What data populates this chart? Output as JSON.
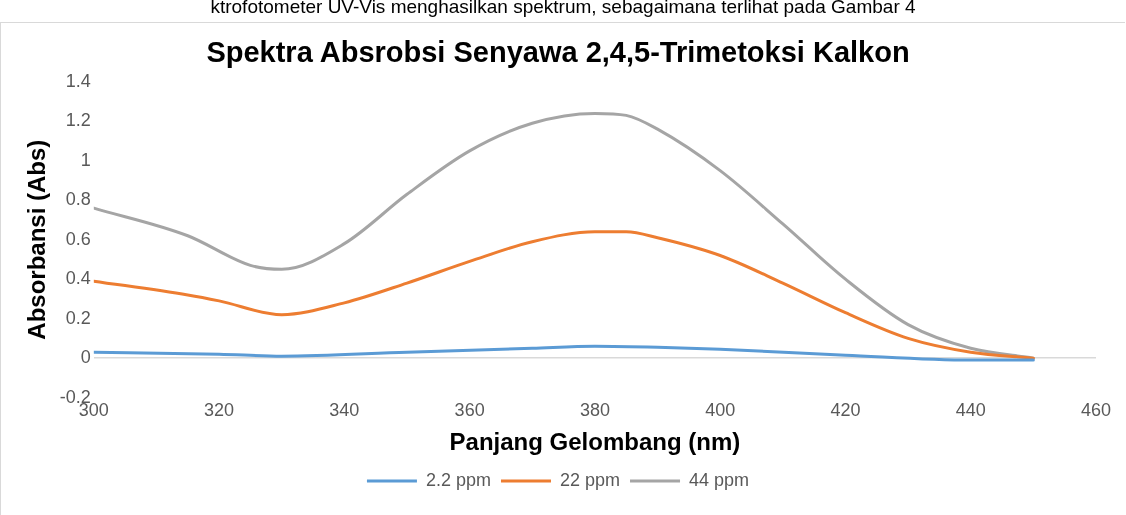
{
  "chart_data": {
    "type": "line",
    "title": "Spektra Absrobsi Senyawa 2,4,5-Trimetoksi Kalkon",
    "xlabel": "Panjang Gelombang (nm)",
    "ylabel": "Absorbansi (Abs)",
    "annotations": [
      "ktrofotometer UV-Vis menghasilkan spektrum, sebagaimana terlihat pada Gambar 4"
    ],
    "xlim": [
      300,
      460
    ],
    "xticks": [
      300,
      320,
      340,
      360,
      380,
      400,
      420,
      440,
      460
    ],
    "ylim": [
      -0.2,
      1.4
    ],
    "yticks": [
      -0.2,
      0,
      0.2,
      0.4,
      0.6,
      0.8,
      1,
      1.2,
      1.4
    ],
    "legend": "bottom",
    "marker": "none",
    "line_style": "solid",
    "series": [
      {
        "name": "2.2 ppm",
        "color": "#5b9bd5",
        "x": [
          300,
          320,
          330,
          350,
          370,
          380,
          390,
          400,
          420,
          440,
          450
        ],
        "values": [
          0.03,
          0.02,
          0.01,
          0.03,
          0.05,
          0.06,
          0.055,
          0.045,
          0.015,
          -0.01,
          -0.01
        ]
      },
      {
        "name": "22 ppm",
        "color": "#ed7d31",
        "x": [
          300,
          315,
          320,
          330,
          340,
          350,
          360,
          370,
          380,
          385,
          390,
          400,
          410,
          420,
          430,
          440,
          450
        ],
        "values": [
          0.39,
          0.32,
          0.29,
          0.22,
          0.28,
          0.38,
          0.49,
          0.59,
          0.64,
          0.64,
          0.61,
          0.52,
          0.38,
          0.23,
          0.1,
          0.03,
          0
        ]
      },
      {
        "name": "44 ppm",
        "color": "#a5a5a5",
        "x": [
          300,
          315,
          325,
          330,
          340,
          350,
          360,
          370,
          380,
          385,
          390,
          400,
          410,
          420,
          430,
          440,
          450
        ],
        "values": [
          0.76,
          0.62,
          0.47,
          0.45,
          0.58,
          0.83,
          1.05,
          1.19,
          1.24,
          1.23,
          1.16,
          0.95,
          0.68,
          0.4,
          0.17,
          0.05,
          0
        ]
      }
    ]
  }
}
